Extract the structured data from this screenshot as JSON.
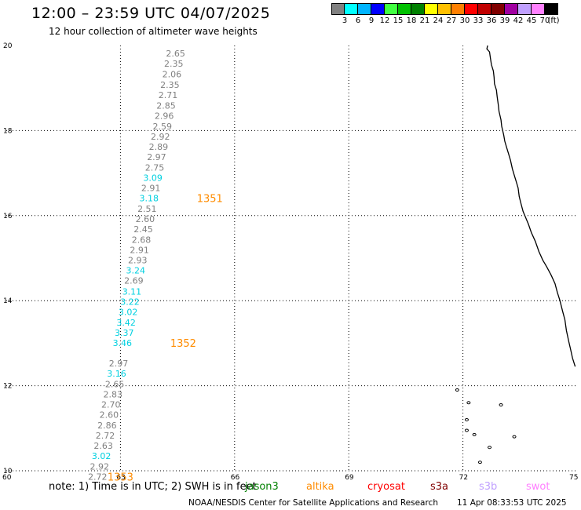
{
  "header": {
    "title": "12:00 – 23:59 UTC 04/07/2025",
    "subtitle": "12 hour collection of altimeter wave heights"
  },
  "legend": {
    "colors": [
      "#808080",
      "#00ffff",
      "#00b4ff",
      "#0000ff",
      "#40ff40",
      "#00c000",
      "#008000",
      "#ffff00",
      "#ffc000",
      "#ff8000",
      "#ff0000",
      "#c00000",
      "#800000",
      "#a000a0",
      "#c0a0ff",
      "#ff80ff",
      "#000000"
    ],
    "labels": [
      "3",
      "6",
      "9",
      "12",
      "15",
      "18",
      "21",
      "24",
      "27",
      "30",
      "33",
      "36",
      "39",
      "42",
      "45",
      "70",
      "(ft)"
    ]
  },
  "map": {
    "lon_range": [
      60,
      75
    ],
    "lat_range": [
      10,
      20
    ],
    "x_ticks": [
      "60",
      "63",
      "66",
      "69",
      "72",
      "75"
    ],
    "y_ticks": [
      "10",
      "12",
      "14",
      "16",
      "18",
      "20"
    ],
    "grid": "dotted",
    "coastline_color": "#000000"
  },
  "observations": [
    {
      "lon": 64.45,
      "lat": 19.82,
      "value": "2.65",
      "color": "#808080"
    },
    {
      "lon": 64.4,
      "lat": 19.58,
      "value": "2.35",
      "color": "#808080"
    },
    {
      "lon": 64.35,
      "lat": 19.33,
      "value": "2.06",
      "color": "#808080"
    },
    {
      "lon": 64.3,
      "lat": 19.08,
      "value": "2.35",
      "color": "#808080"
    },
    {
      "lon": 64.25,
      "lat": 18.84,
      "value": "2.71",
      "color": "#808080"
    },
    {
      "lon": 64.2,
      "lat": 18.59,
      "value": "2.85",
      "color": "#808080"
    },
    {
      "lon": 64.15,
      "lat": 18.35,
      "value": "2.96",
      "color": "#808080"
    },
    {
      "lon": 64.1,
      "lat": 18.1,
      "value": "2.59",
      "color": "#808080"
    },
    {
      "lon": 64.05,
      "lat": 17.86,
      "value": "2.92",
      "color": "#808080"
    },
    {
      "lon": 64.0,
      "lat": 17.62,
      "value": "2.89",
      "color": "#808080"
    },
    {
      "lon": 63.95,
      "lat": 17.38,
      "value": "2.97",
      "color": "#808080"
    },
    {
      "lon": 63.9,
      "lat": 17.13,
      "value": "2.75",
      "color": "#808080"
    },
    {
      "lon": 63.85,
      "lat": 16.89,
      "value": "3.09",
      "color": "#00d0e0"
    },
    {
      "lon": 63.8,
      "lat": 16.65,
      "value": "2.91",
      "color": "#808080"
    },
    {
      "lon": 63.75,
      "lat": 16.41,
      "value": "3.18",
      "color": "#00d0e0"
    },
    {
      "lon": 63.7,
      "lat": 16.16,
      "value": "2.51",
      "color": "#808080"
    },
    {
      "lon": 63.65,
      "lat": 15.92,
      "value": "2.60",
      "color": "#808080"
    },
    {
      "lon": 63.6,
      "lat": 15.68,
      "value": "2.45",
      "color": "#808080"
    },
    {
      "lon": 63.55,
      "lat": 15.43,
      "value": "2.68",
      "color": "#808080"
    },
    {
      "lon": 63.5,
      "lat": 15.19,
      "value": "2.91",
      "color": "#808080"
    },
    {
      "lon": 63.45,
      "lat": 14.95,
      "value": "2.93",
      "color": "#808080"
    },
    {
      "lon": 63.4,
      "lat": 14.71,
      "value": "3.24",
      "color": "#00d0e0"
    },
    {
      "lon": 63.35,
      "lat": 14.47,
      "value": "2.69",
      "color": "#808080"
    },
    {
      "lon": 63.3,
      "lat": 14.22,
      "value": "3.11",
      "color": "#00d0e0"
    },
    {
      "lon": 63.25,
      "lat": 13.98,
      "value": "3.22",
      "color": "#00d0e0"
    },
    {
      "lon": 63.2,
      "lat": 13.74,
      "value": "3.02",
      "color": "#00d0e0"
    },
    {
      "lon": 63.15,
      "lat": 13.49,
      "value": "3.42",
      "color": "#00d0e0"
    },
    {
      "lon": 63.1,
      "lat": 13.25,
      "value": "3.37",
      "color": "#00d0e0"
    },
    {
      "lon": 63.05,
      "lat": 13.01,
      "value": "3.46",
      "color": "#00d0e0"
    },
    {
      "lon": 62.95,
      "lat": 12.53,
      "value": "2.97",
      "color": "#808080"
    },
    {
      "lon": 62.9,
      "lat": 12.29,
      "value": "3.16",
      "color": "#00d0e0"
    },
    {
      "lon": 62.85,
      "lat": 12.04,
      "value": "2.65",
      "color": "#808080"
    },
    {
      "lon": 62.8,
      "lat": 11.8,
      "value": "2.83",
      "color": "#808080"
    },
    {
      "lon": 62.75,
      "lat": 11.56,
      "value": "2.70",
      "color": "#808080"
    },
    {
      "lon": 62.7,
      "lat": 11.32,
      "value": "2.60",
      "color": "#808080"
    },
    {
      "lon": 62.65,
      "lat": 11.07,
      "value": "2.86",
      "color": "#808080"
    },
    {
      "lon": 62.6,
      "lat": 10.83,
      "value": "2.72",
      "color": "#808080"
    },
    {
      "lon": 62.55,
      "lat": 10.59,
      "value": "2.63",
      "color": "#808080"
    },
    {
      "lon": 62.5,
      "lat": 10.35,
      "value": "3.02",
      "color": "#00d0e0"
    },
    {
      "lon": 62.45,
      "lat": 10.1,
      "value": "2.92",
      "color": "#808080"
    },
    {
      "lon": 62.4,
      "lat": 9.86,
      "value": "2.72",
      "color": "#808080"
    }
  ],
  "track_labels": [
    {
      "lon": 65.35,
      "lat": 16.41,
      "label": "1351",
      "color": "#ff8c00"
    },
    {
      "lon": 64.65,
      "lat": 13.01,
      "label": "1352",
      "color": "#ff8c00"
    },
    {
      "lon": 63.0,
      "lat": 9.86,
      "label": "1353",
      "color": "#ff8c00"
    }
  ],
  "footer": {
    "note": "note:  1) Time is in UTC;  2) SWH is in feet",
    "satellites": [
      {
        "name": "jason3",
        "color": "#008000"
      },
      {
        "name": "altika",
        "color": "#ff8c00"
      },
      {
        "name": "cryosat",
        "color": "#ff0000"
      },
      {
        "name": "s3a",
        "color": "#800000"
      },
      {
        "name": "s3b",
        "color": "#c0a0ff"
      },
      {
        "name": "swot",
        "color": "#ff80ff"
      }
    ],
    "credit": "NOAA/NESDIS Center for Satellite Applications and Research",
    "generated": "11 Apr 08:33:53 UTC 2025"
  }
}
